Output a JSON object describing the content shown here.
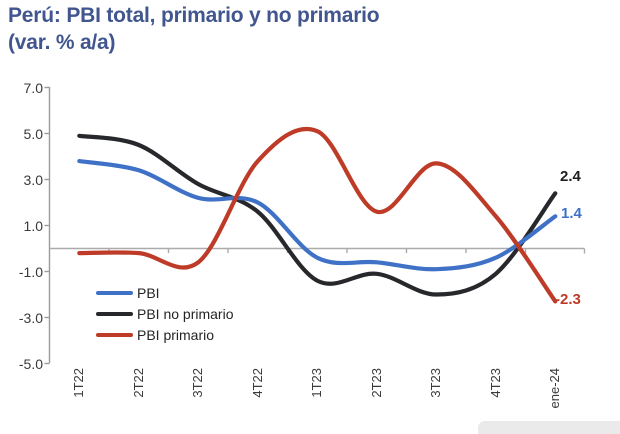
{
  "chart_data": {
    "type": "line",
    "title": "Perú: PBI total, primario y no primario",
    "subtitle": "(var. % a/a)",
    "title_color": "#41568F",
    "categories": [
      "1T22",
      "2T22",
      "3T22",
      "4T22",
      "1T23",
      "2T23",
      "3T23",
      "4T23",
      "ene-24"
    ],
    "x_tick_labels_rotated": true,
    "ylim": [
      -5.0,
      7.0
    ],
    "ytick_values": [
      7.0,
      5.0,
      3.0,
      1.0,
      -1.0,
      -3.0,
      -5.0
    ],
    "ytick_labels": [
      "7.0",
      "5.0",
      "3.0",
      "1.0",
      "-1.0",
      "-3.0",
      "-5.0"
    ],
    "grid": "zero-line-only",
    "axis_color": "#9b9b9b",
    "zero_line_color": "#ababab",
    "legend_position": "inside-bottom-left",
    "series": [
      {
        "name": "PBI",
        "color": "#3F72C6",
        "values": [
          3.8,
          3.4,
          2.2,
          2.0,
          -0.4,
          -0.6,
          -0.9,
          -0.4,
          1.4
        ],
        "end_label": "1.4"
      },
      {
        "name": "PBI no primario",
        "color": "#26282B",
        "values": [
          4.9,
          4.5,
          2.8,
          1.6,
          -1.4,
          -1.1,
          -2.0,
          -1.1,
          2.4
        ],
        "end_label": "2.4"
      },
      {
        "name": "PBI primario",
        "color": "#BE3B28",
        "values": [
          -0.2,
          -0.2,
          -0.6,
          3.8,
          5.1,
          1.6,
          3.7,
          1.4,
          -2.3
        ],
        "end_label": "-2.3"
      }
    ]
  }
}
